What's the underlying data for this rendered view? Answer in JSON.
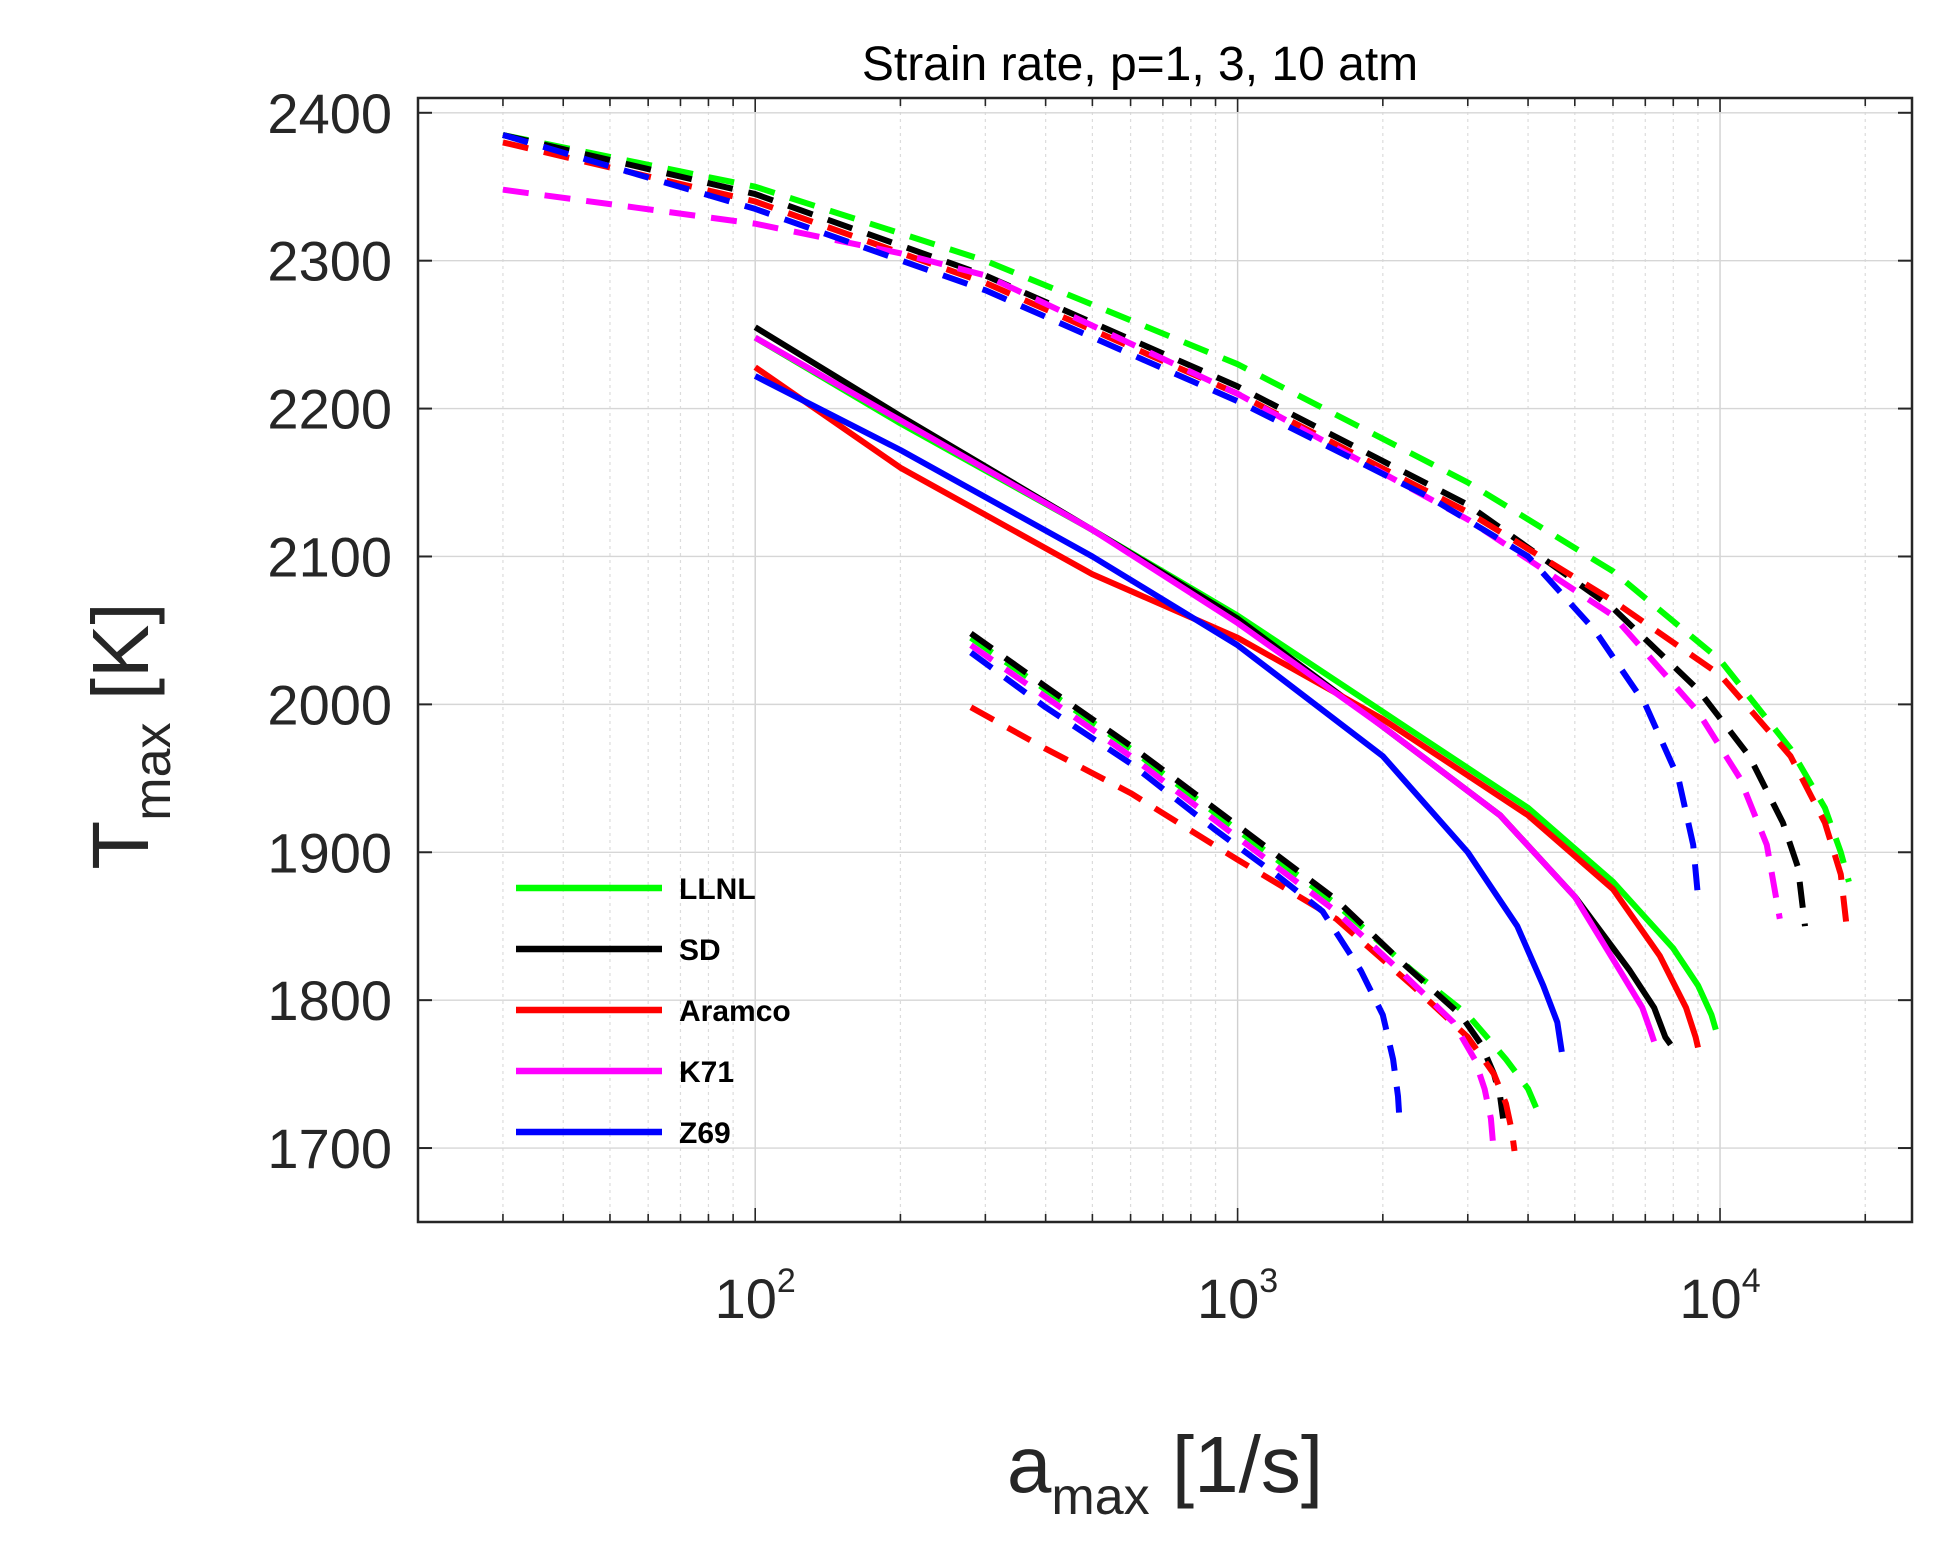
{
  "chart_data": {
    "type": "line",
    "title": "Strain rate, p=1, 3, 10 atm",
    "xlabel": {
      "main": "a",
      "sub": "max",
      "unit": " [1/s]"
    },
    "ylabel": {
      "main": "T",
      "sub": "max",
      "unit": " [K]"
    },
    "xscale": "log",
    "xlim": [
      20,
      25000
    ],
    "ylim": [
      1650,
      2410
    ],
    "x_ticks": [
      {
        "base": "10",
        "exp": "2",
        "value": 100
      },
      {
        "base": "10",
        "exp": "3",
        "value": 1000
      },
      {
        "base": "10",
        "exp": "4",
        "value": 10000
      }
    ],
    "y_ticks": [
      "1700",
      "1800",
      "1900",
      "2000",
      "2100",
      "2200",
      "2300",
      "2400"
    ],
    "grid": true,
    "legend_position": "lower-left",
    "legend": [
      {
        "label": "LLNL",
        "color": "#00ff00"
      },
      {
        "label": "SD",
        "color": "#000000"
      },
      {
        "label": "Aramco",
        "color": "#ff0000"
      },
      {
        "label": "K71",
        "color": "#ff00ff"
      },
      {
        "label": "Z69",
        "color": "#0000ff"
      }
    ],
    "series": [
      {
        "name": "LLNL",
        "pressure": "1 atm",
        "style": "dashed",
        "color": "#00ff00",
        "points": [
          [
            280,
            2045
          ],
          [
            400,
            2010
          ],
          [
            600,
            1970
          ],
          [
            1000,
            1915
          ],
          [
            1600,
            1865
          ],
          [
            2300,
            1820
          ],
          [
            3000,
            1790
          ],
          [
            3600,
            1760
          ],
          [
            4000,
            1740
          ],
          [
            4250,
            1720
          ]
        ]
      },
      {
        "name": "SD",
        "pressure": "1 atm",
        "style": "dashed",
        "color": "#000000",
        "points": [
          [
            280,
            2048
          ],
          [
            400,
            2012
          ],
          [
            600,
            1972
          ],
          [
            1000,
            1918
          ],
          [
            1600,
            1868
          ],
          [
            2200,
            1825
          ],
          [
            2900,
            1790
          ],
          [
            3200,
            1770
          ],
          [
            3400,
            1750
          ],
          [
            3500,
            1735
          ],
          [
            3550,
            1720
          ]
        ]
      },
      {
        "name": "Aramco",
        "pressure": "1 atm",
        "style": "dashed",
        "color": "#ff0000",
        "points": [
          [
            280,
            1998
          ],
          [
            400,
            1970
          ],
          [
            600,
            1940
          ],
          [
            1000,
            1895
          ],
          [
            1600,
            1855
          ],
          [
            2300,
            1810
          ],
          [
            3000,
            1775
          ],
          [
            3400,
            1750
          ],
          [
            3600,
            1730
          ],
          [
            3700,
            1712
          ],
          [
            3750,
            1698
          ]
        ]
      },
      {
        "name": "K71",
        "pressure": "1 atm",
        "style": "dashed",
        "color": "#ff00ff",
        "points": [
          [
            280,
            2040
          ],
          [
            400,
            2005
          ],
          [
            600,
            1965
          ],
          [
            1000,
            1910
          ],
          [
            1600,
            1860
          ],
          [
            2200,
            1818
          ],
          [
            2800,
            1785
          ],
          [
            3100,
            1760
          ],
          [
            3250,
            1740
          ],
          [
            3350,
            1720
          ],
          [
            3380,
            1705
          ]
        ]
      },
      {
        "name": "Z69",
        "pressure": "1 atm",
        "style": "dashed",
        "color": "#0000ff",
        "points": [
          [
            280,
            2035
          ],
          [
            400,
            1998
          ],
          [
            600,
            1960
          ],
          [
            900,
            1915
          ],
          [
            1200,
            1885
          ],
          [
            1500,
            1860
          ],
          [
            1800,
            1820
          ],
          [
            2000,
            1790
          ],
          [
            2100,
            1760
          ],
          [
            2150,
            1735
          ],
          [
            2170,
            1715
          ]
        ]
      },
      {
        "name": "LLNL",
        "pressure": "3 atm",
        "style": "solid",
        "color": "#00ff00",
        "points": [
          [
            100,
            2248
          ],
          [
            200,
            2190
          ],
          [
            500,
            2118
          ],
          [
            1000,
            2060
          ],
          [
            2000,
            1995
          ],
          [
            4000,
            1930
          ],
          [
            6000,
            1880
          ],
          [
            8000,
            1835
          ],
          [
            9000,
            1810
          ],
          [
            9600,
            1790
          ],
          [
            9800,
            1780
          ]
        ]
      },
      {
        "name": "SD",
        "pressure": "3 atm",
        "style": "solid",
        "color": "#000000",
        "points": [
          [
            100,
            2255
          ],
          [
            200,
            2195
          ],
          [
            500,
            2118
          ],
          [
            1000,
            2058
          ],
          [
            2000,
            1985
          ],
          [
            3500,
            1925
          ],
          [
            5000,
            1870
          ],
          [
            6500,
            1820
          ],
          [
            7300,
            1795
          ],
          [
            7700,
            1775
          ],
          [
            7900,
            1770
          ]
        ]
      },
      {
        "name": "Aramco",
        "pressure": "3 atm",
        "style": "solid",
        "color": "#ff0000",
        "points": [
          [
            100,
            2228
          ],
          [
            200,
            2160
          ],
          [
            500,
            2088
          ],
          [
            1000,
            2045
          ],
          [
            2000,
            1990
          ],
          [
            4000,
            1925
          ],
          [
            6000,
            1875
          ],
          [
            7500,
            1830
          ],
          [
            8500,
            1795
          ],
          [
            8900,
            1775
          ],
          [
            9000,
            1768
          ]
        ]
      },
      {
        "name": "K71",
        "pressure": "3 atm",
        "style": "solid",
        "color": "#ff00ff",
        "points": [
          [
            100,
            2248
          ],
          [
            200,
            2192
          ],
          [
            500,
            2118
          ],
          [
            1000,
            2055
          ],
          [
            2000,
            1985
          ],
          [
            3500,
            1925
          ],
          [
            5000,
            1870
          ],
          [
            6200,
            1820
          ],
          [
            6900,
            1795
          ],
          [
            7200,
            1778
          ],
          [
            7300,
            1772
          ]
        ]
      },
      {
        "name": "Z69",
        "pressure": "3 atm",
        "style": "solid",
        "color": "#0000ff",
        "points": [
          [
            100,
            2222
          ],
          [
            200,
            2172
          ],
          [
            500,
            2100
          ],
          [
            1000,
            2040
          ],
          [
            2000,
            1965
          ],
          [
            3000,
            1900
          ],
          [
            3800,
            1850
          ],
          [
            4300,
            1810
          ],
          [
            4600,
            1785
          ],
          [
            4700,
            1765
          ]
        ]
      },
      {
        "name": "LLNL",
        "pressure": "10 atm",
        "style": "dashed",
        "color": "#00ff00",
        "points": [
          [
            30,
            2385
          ],
          [
            100,
            2350
          ],
          [
            300,
            2300
          ],
          [
            1000,
            2230
          ],
          [
            3000,
            2150
          ],
          [
            6000,
            2090
          ],
          [
            10000,
            2030
          ],
          [
            14000,
            1970
          ],
          [
            16500,
            1930
          ],
          [
            17800,
            1900
          ],
          [
            18500,
            1880
          ]
        ]
      },
      {
        "name": "SD",
        "pressure": "10 atm",
        "style": "dashed",
        "color": "#000000",
        "points": [
          [
            30,
            2385
          ],
          [
            100,
            2345
          ],
          [
            300,
            2290
          ],
          [
            1000,
            2215
          ],
          [
            3000,
            2135
          ],
          [
            6000,
            2065
          ],
          [
            9000,
            2010
          ],
          [
            11500,
            1965
          ],
          [
            13500,
            1920
          ],
          [
            14500,
            1890
          ],
          [
            15000,
            1850
          ]
        ]
      },
      {
        "name": "Aramco",
        "pressure": "10 atm",
        "style": "dashed",
        "color": "#ff0000",
        "points": [
          [
            30,
            2380
          ],
          [
            100,
            2340
          ],
          [
            300,
            2285
          ],
          [
            1000,
            2210
          ],
          [
            3000,
            2130
          ],
          [
            6000,
            2070
          ],
          [
            10000,
            2020
          ],
          [
            14000,
            1965
          ],
          [
            16500,
            1920
          ],
          [
            17800,
            1885
          ],
          [
            18300,
            1850
          ]
        ]
      },
      {
        "name": "K71",
        "pressure": "10 atm",
        "style": "dashed",
        "color": "#ff00ff",
        "points": [
          [
            30,
            2348
          ],
          [
            100,
            2325
          ],
          [
            200,
            2305
          ],
          [
            300,
            2290
          ],
          [
            1000,
            2210
          ],
          [
            3000,
            2125
          ],
          [
            6000,
            2060
          ],
          [
            9000,
            1995
          ],
          [
            11000,
            1950
          ],
          [
            12500,
            1905
          ],
          [
            13300,
            1855
          ]
        ]
      },
      {
        "name": "Z69",
        "pressure": "10 atm",
        "style": "dashed",
        "color": "#0000ff",
        "points": [
          [
            30,
            2385
          ],
          [
            100,
            2335
          ],
          [
            300,
            2280
          ],
          [
            1000,
            2205
          ],
          [
            2500,
            2140
          ],
          [
            4000,
            2100
          ],
          [
            5500,
            2050
          ],
          [
            7000,
            2000
          ],
          [
            8200,
            1950
          ],
          [
            8800,
            1905
          ],
          [
            9000,
            1870
          ]
        ]
      }
    ]
  }
}
